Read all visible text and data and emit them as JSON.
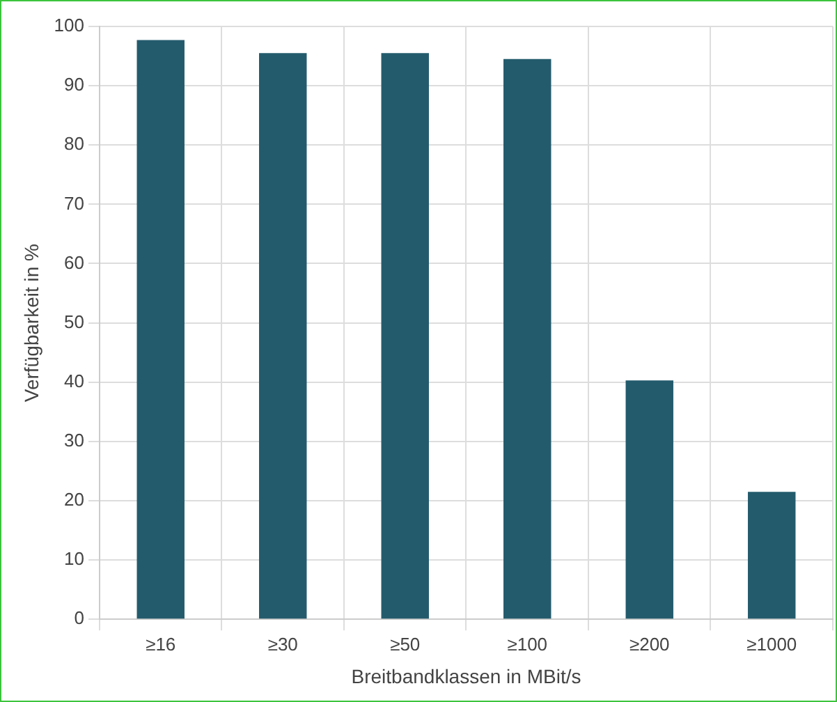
{
  "chart_data": {
    "type": "bar",
    "xlabel": "Breitbandklassen in MBit/s",
    "ylabel": "Verfügbarkeit in %",
    "categories": [
      "≥16",
      "≥30",
      "≥50",
      "≥100",
      "≥200",
      "≥1000"
    ],
    "values": [
      97.7,
      95.5,
      95.5,
      94.5,
      40.3,
      21.5
    ],
    "color": "#235b6c",
    "ylim": [
      0,
      100
    ],
    "yticks": [
      0,
      10,
      20,
      30,
      40,
      50,
      60,
      70,
      80,
      90,
      100
    ],
    "grid": true,
    "legend": false
  }
}
